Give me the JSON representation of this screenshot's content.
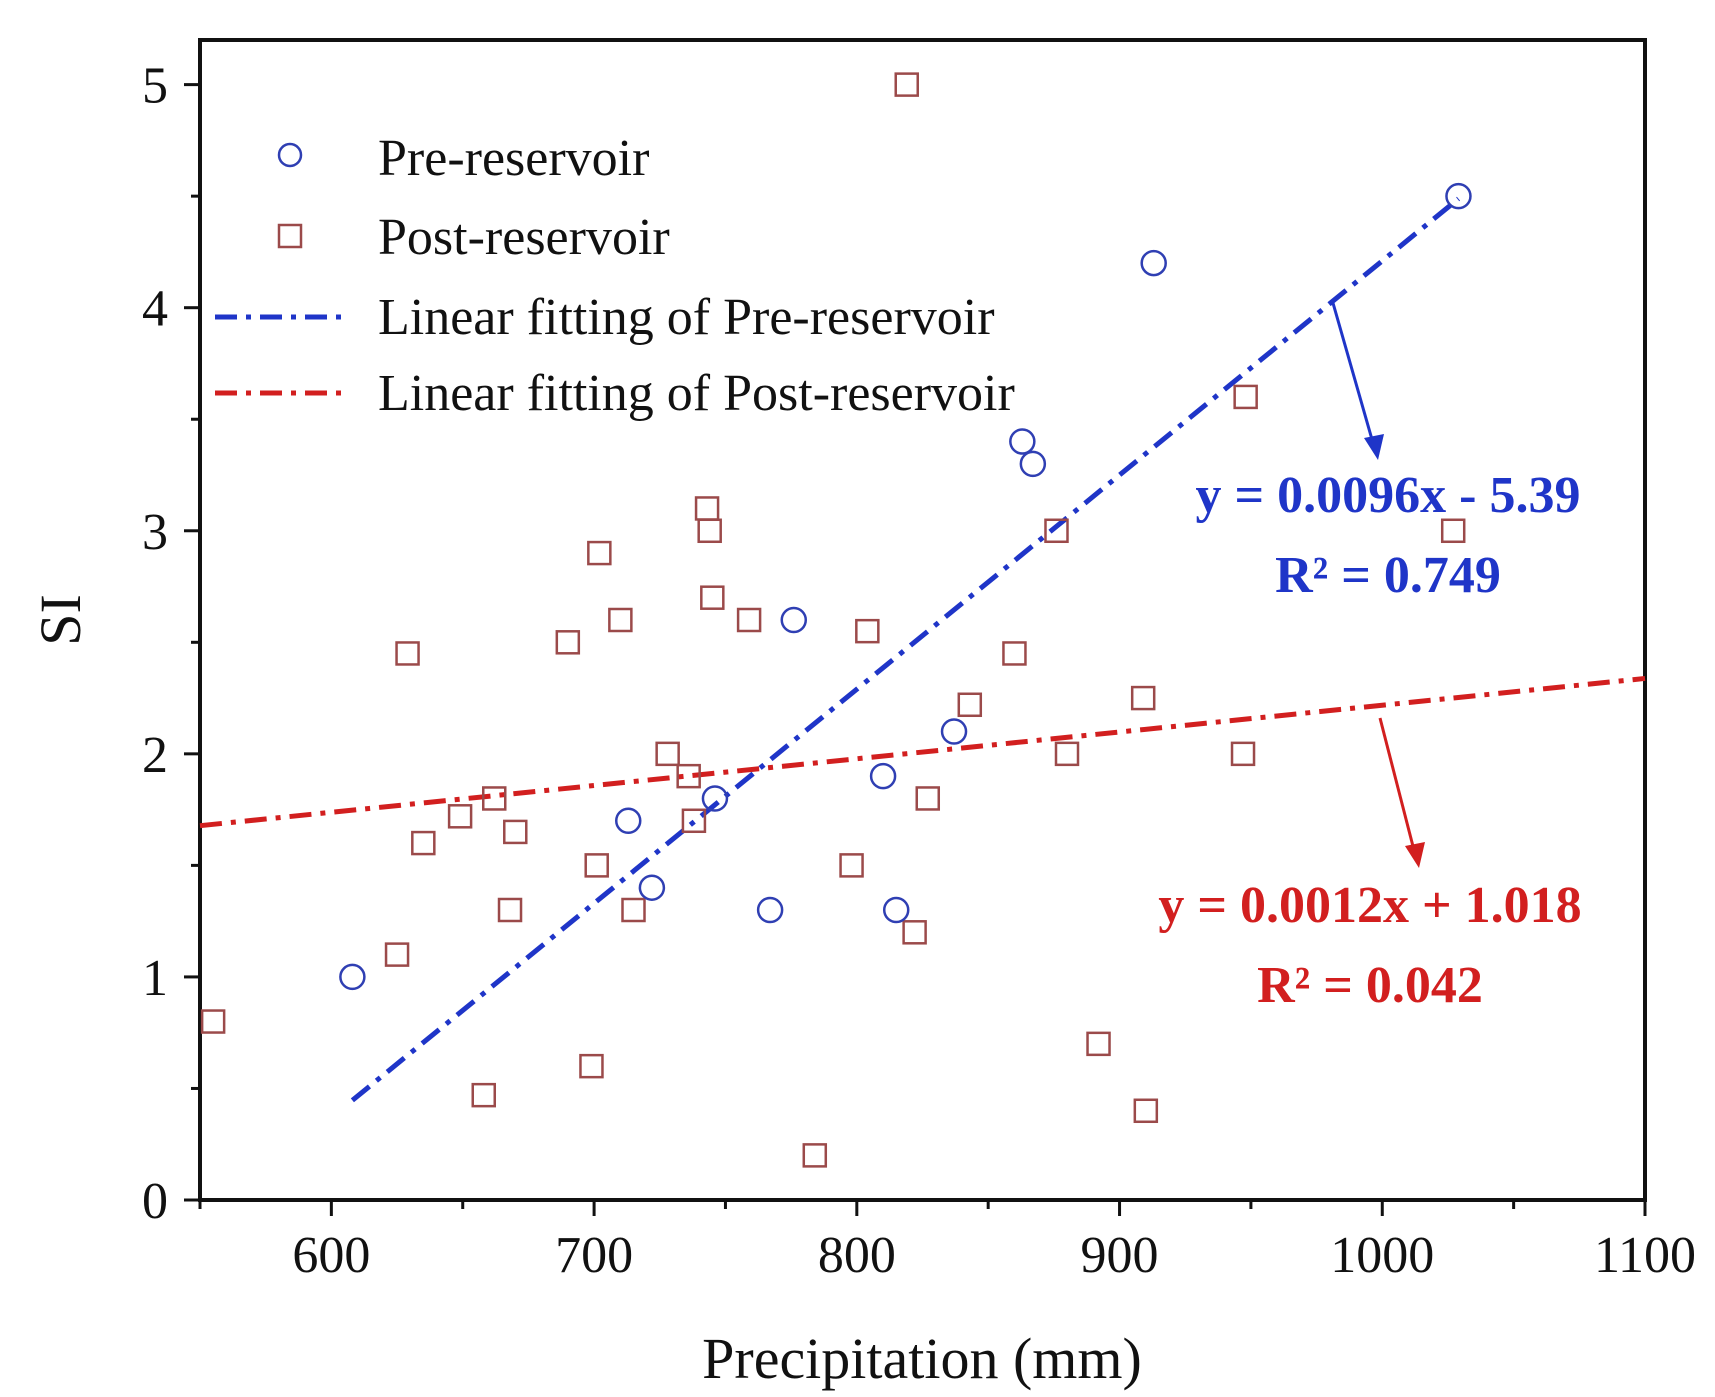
{
  "chart_data": {
    "type": "scatter",
    "xlabel": "Precipitation (mm)",
    "ylabel": "SI",
    "xlim": [
      550,
      1100
    ],
    "ylim": [
      0,
      5.2
    ],
    "x_major_ticks": [
      600,
      700,
      800,
      900,
      1000,
      1100
    ],
    "x_minor_ticks": [
      550,
      650,
      750,
      850,
      950,
      1050
    ],
    "y_major_ticks": [
      0,
      1,
      2,
      3,
      4,
      5
    ],
    "y_minor_ticks": [
      0.5,
      1.5,
      2.5,
      3.5,
      4.5
    ],
    "x_tick_labels": [
      "600",
      "700",
      "800",
      "900",
      "1000",
      "1100"
    ],
    "y_tick_labels": [
      "0",
      "1",
      "2",
      "3",
      "4",
      "5"
    ],
    "grid": false,
    "legend_position": "top-left",
    "colors": {
      "pre": "#2f3fb3",
      "post": "#9b4a4a",
      "pre_fit": "#1f35c8",
      "post_fit": "#d21f1f"
    },
    "series": [
      {
        "name": "Pre-reservoir",
        "marker": "circle",
        "points": [
          [
            608,
            1.0
          ],
          [
            713,
            1.7
          ],
          [
            722,
            1.4
          ],
          [
            746,
            1.8
          ],
          [
            767,
            1.3
          ],
          [
            776,
            2.6
          ],
          [
            810,
            1.9
          ],
          [
            815,
            1.3
          ],
          [
            837,
            2.1
          ],
          [
            863,
            3.4
          ],
          [
            867,
            3.3
          ],
          [
            913,
            4.2
          ],
          [
            1029,
            4.5
          ]
        ]
      },
      {
        "name": "Post-reservoir",
        "marker": "square",
        "points": [
          [
            555,
            0.8
          ],
          [
            625,
            1.1
          ],
          [
            629,
            2.45
          ],
          [
            635,
            1.6
          ],
          [
            649,
            1.72
          ],
          [
            658,
            0.47
          ],
          [
            662,
            1.8
          ],
          [
            668,
            1.3
          ],
          [
            670,
            1.65
          ],
          [
            690,
            2.5
          ],
          [
            699,
            0.6
          ],
          [
            701,
            1.5
          ],
          [
            702,
            2.9
          ],
          [
            710,
            2.6
          ],
          [
            715,
            1.3
          ],
          [
            728,
            2.0
          ],
          [
            736,
            1.9
          ],
          [
            738,
            1.7
          ],
          [
            743,
            3.1
          ],
          [
            744,
            3.0
          ],
          [
            745,
            2.7
          ],
          [
            759,
            2.6
          ],
          [
            784,
            0.2
          ],
          [
            798,
            1.5
          ],
          [
            804,
            2.55
          ],
          [
            819,
            5.0
          ],
          [
            822,
            1.2
          ],
          [
            827,
            1.8
          ],
          [
            843,
            2.22
          ],
          [
            860,
            2.45
          ],
          [
            876,
            3.0
          ],
          [
            880,
            2.0
          ],
          [
            892,
            0.7
          ],
          [
            909,
            2.25
          ],
          [
            910,
            0.4
          ],
          [
            947,
            2.0
          ],
          [
            948,
            3.6
          ],
          [
            1027,
            3.0
          ]
        ]
      },
      {
        "name": "Linear fitting of Pre-reservoir",
        "line": "dashdot",
        "slope": 0.0096,
        "intercept": -5.39,
        "x_range": [
          608,
          1029
        ]
      },
      {
        "name": "Linear fitting of Post-reservoir",
        "line": "dashdot",
        "slope": 0.0012,
        "intercept": 1.018,
        "x_range": [
          550,
          1100
        ]
      }
    ],
    "annotations": {
      "pre_equation": "y = 0.0096x - 5.39",
      "pre_r2": "R² = 0.749",
      "post_equation": "y = 0.0012x + 1.018",
      "post_r2": "R² = 0.042"
    }
  }
}
